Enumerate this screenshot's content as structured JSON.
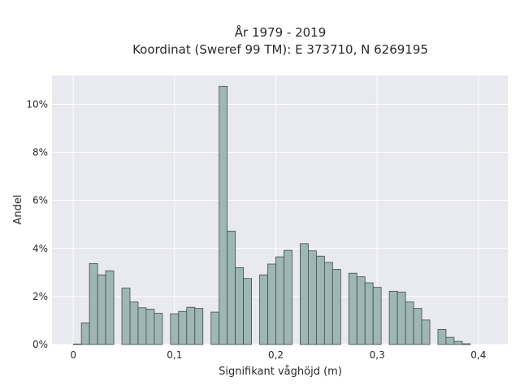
{
  "chart_data": {
    "type": "bar",
    "title_line1": "År 1979 - 2019",
    "title_line2": "Koordinat (Sweref 99 TM): E 373710, N 6269195",
    "xlabel": "Signifikant våghöjd (m)",
    "ylabel": "Andel",
    "x_ticks": [
      {
        "value": 0,
        "label": "0"
      },
      {
        "value": 0.1,
        "label": "0,1"
      },
      {
        "value": 0.2,
        "label": "0,2"
      },
      {
        "value": 0.3,
        "label": "0,3"
      },
      {
        "value": 0.4,
        "label": "0,4"
      }
    ],
    "y_ticks": [
      {
        "value": 0,
        "label": "0%"
      },
      {
        "value": 2,
        "label": "2%"
      },
      {
        "value": 4,
        "label": "4%"
      },
      {
        "value": 6,
        "label": "6%"
      },
      {
        "value": 8,
        "label": "8%"
      },
      {
        "value": 10,
        "label": "10%"
      }
    ],
    "xlim": [
      -0.021,
      0.429
    ],
    "ylim": [
      0,
      11.2
    ],
    "bin_width": 0.008,
    "bin_start": 0.0,
    "values": [
      0.02,
      0.9,
      3.37,
      2.9,
      3.07,
      0,
      2.35,
      1.77,
      1.53,
      1.47,
      1.3,
      0,
      1.28,
      1.38,
      1.55,
      1.5,
      0,
      1.35,
      10.75,
      4.72,
      3.2,
      2.75,
      0,
      2.9,
      3.35,
      3.65,
      3.92,
      0,
      4.2,
      3.9,
      3.68,
      3.42,
      3.13,
      0,
      2.97,
      2.82,
      2.57,
      2.38,
      0,
      2.22,
      2.18,
      1.77,
      1.5,
      1.02,
      0,
      0.63,
      0.3,
      0.13,
      0.03
    ],
    "grid": true,
    "colors": {
      "background": "#e9e9f0",
      "grid": "#ffffff",
      "bar_fill": "#9eb7b5",
      "bar_stroke": "#3f4b4a"
    }
  }
}
